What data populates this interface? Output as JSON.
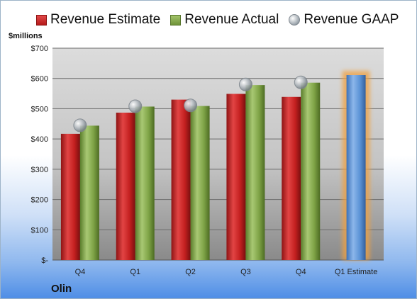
{
  "legend": {
    "estimate": "Revenue Estimate",
    "actual": "Revenue Actual",
    "gaap": "Revenue GAAP"
  },
  "units": "$millions",
  "company": "Olin",
  "colors": {
    "estimate": "#c62828",
    "actual": "#7ea346",
    "gaap": "#a9b0b6",
    "forecast": "#5b93d6",
    "forecast_glow": "#f0a040"
  },
  "chart_data": {
    "type": "bar",
    "categories": [
      "Q4",
      "Q1",
      "Q2",
      "Q3",
      "Q4",
      "Q1 Estimate"
    ],
    "series": [
      {
        "name": "Revenue Estimate",
        "values": [
          417,
          487,
          530,
          549,
          539,
          null
        ]
      },
      {
        "name": "Revenue Actual",
        "values": [
          444,
          507,
          509,
          578,
          586,
          611
        ]
      },
      {
        "name": "Revenue GAAP",
        "values": [
          445,
          508,
          511,
          580,
          587,
          null
        ]
      }
    ],
    "ylim": [
      0,
      700
    ],
    "yticks": [
      0,
      100,
      200,
      300,
      400,
      500,
      600,
      700
    ],
    "ytick_labels": [
      "$-",
      "$100",
      "$200",
      "$300",
      "$400",
      "$500",
      "$600",
      "$700"
    ],
    "legend_position": "top",
    "grid": true
  }
}
